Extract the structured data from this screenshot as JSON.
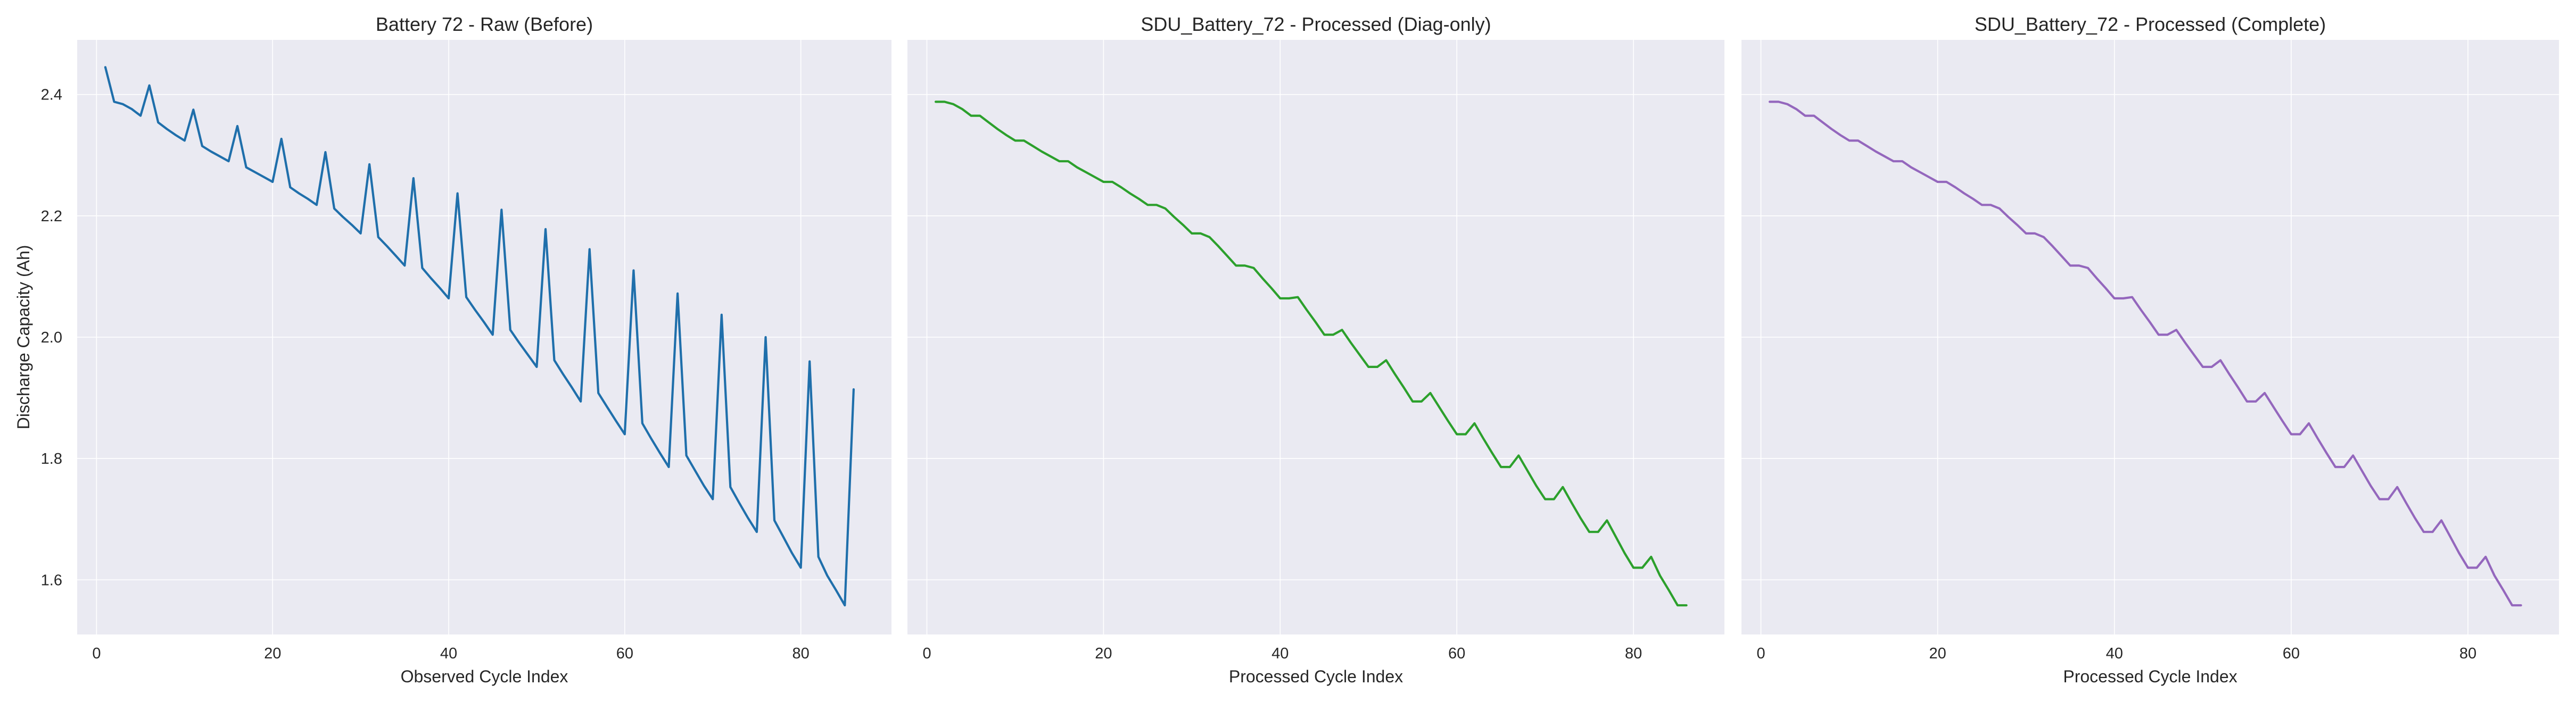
{
  "figure": {
    "ylabel": "Discharge Capacity (Ah)"
  },
  "chart_data": [
    {
      "type": "line",
      "title": "Battery 72 - Raw (Before)",
      "xlabel": "Observed Cycle Index",
      "ylabel": "Discharge Capacity (Ah)",
      "xlim": [
        -2.2,
        90.3
      ],
      "ylim": [
        1.51,
        2.49
      ],
      "xticks": [
        0,
        20,
        40,
        60,
        80
      ],
      "yticks": [
        1.6,
        1.8,
        2.0,
        2.2,
        2.4
      ],
      "tick_labels_x": [
        "0",
        "20",
        "40",
        "60",
        "80"
      ],
      "tick_labels_y": [
        "1.6",
        "1.8",
        "2.0",
        "2.2",
        "2.4"
      ],
      "grid": true,
      "color": "#1f6fab",
      "series": [
        {
          "x": [
            1,
            2,
            3,
            4,
            5,
            6,
            7,
            8,
            9,
            10,
            11,
            12,
            13,
            14,
            15,
            16,
            17,
            18,
            19,
            20,
            21,
            22,
            23,
            24,
            25,
            26,
            27,
            28,
            29,
            30,
            31,
            32,
            33,
            34,
            35,
            36,
            37,
            38,
            39,
            40,
            41,
            42,
            43,
            44,
            45,
            46,
            47,
            48,
            49,
            50,
            51,
            52,
            53,
            54,
            55,
            56,
            57,
            58,
            59,
            60,
            61,
            62,
            63,
            64,
            65,
            66,
            67,
            68,
            69,
            70,
            71,
            72,
            73,
            74,
            75,
            76,
            77,
            78,
            79,
            80,
            81,
            82,
            83,
            84,
            85,
            86
          ],
          "y": [
            2.445,
            2.388,
            2.384,
            2.376,
            2.365,
            2.415,
            2.354,
            2.343,
            2.333,
            2.324,
            2.375,
            2.315,
            2.306,
            2.298,
            2.29,
            2.348,
            2.28,
            2.272,
            2.264,
            2.256,
            2.327,
            2.247,
            2.237,
            2.228,
            2.218,
            2.305,
            2.212,
            2.198,
            2.185,
            2.171,
            2.285,
            2.165,
            2.15,
            2.134,
            2.118,
            2.262,
            2.114,
            2.097,
            2.081,
            2.064,
            2.237,
            2.066,
            2.045,
            2.025,
            2.004,
            2.21,
            2.012,
            1.991,
            1.971,
            1.951,
            2.178,
            1.962,
            1.939,
            1.917,
            1.894,
            2.145,
            1.908,
            1.885,
            1.862,
            1.84,
            2.11,
            1.858,
            1.833,
            1.809,
            1.786,
            2.072,
            1.805,
            1.78,
            1.755,
            1.733,
            2.037,
            1.753,
            1.727,
            1.702,
            1.679,
            2.0,
            1.698,
            1.671,
            1.644,
            1.62,
            1.96,
            1.638,
            1.607,
            1.583,
            1.558,
            1.914
          ]
        }
      ]
    },
    {
      "type": "line",
      "title": "SDU_Battery_72 - Processed (Diag-only)",
      "xlabel": "Processed Cycle Index",
      "ylabel": "",
      "xlim": [
        -2.2,
        90.3
      ],
      "ylim": [
        1.51,
        2.49
      ],
      "xticks": [
        0,
        20,
        40,
        60,
        80
      ],
      "yticks": [
        1.6,
        1.8,
        2.0,
        2.2,
        2.4
      ],
      "tick_labels_x": [
        "0",
        "20",
        "40",
        "60",
        "80"
      ],
      "grid": true,
      "color": "#2ca02c",
      "series": [
        {
          "x": [
            1,
            2,
            3,
            4,
            5,
            6,
            7,
            8,
            9,
            10,
            11,
            12,
            13,
            14,
            15,
            16,
            17,
            18,
            19,
            20,
            21,
            22,
            23,
            24,
            25,
            26,
            27,
            28,
            29,
            30,
            31,
            32,
            33,
            34,
            35,
            36,
            37,
            38,
            39,
            40,
            41,
            42,
            43,
            44,
            45,
            46,
            47,
            48,
            49,
            50,
            51,
            52,
            53,
            54,
            55,
            56,
            57,
            58,
            59,
            60,
            61,
            62,
            63,
            64,
            65,
            66,
            67,
            68,
            69,
            70,
            71,
            72,
            73,
            74,
            75,
            76,
            77,
            78,
            79,
            80,
            81,
            82,
            83,
            84,
            85,
            86
          ],
          "y": [
            2.388,
            2.388,
            2.384,
            2.376,
            2.365,
            2.365,
            2.354,
            2.343,
            2.333,
            2.324,
            2.324,
            2.315,
            2.306,
            2.298,
            2.29,
            2.29,
            2.28,
            2.272,
            2.264,
            2.256,
            2.256,
            2.247,
            2.237,
            2.228,
            2.218,
            2.218,
            2.212,
            2.198,
            2.185,
            2.171,
            2.171,
            2.165,
            2.15,
            2.134,
            2.118,
            2.118,
            2.114,
            2.097,
            2.081,
            2.064,
            2.064,
            2.066,
            2.045,
            2.025,
            2.004,
            2.004,
            2.012,
            1.991,
            1.971,
            1.951,
            1.951,
            1.962,
            1.939,
            1.917,
            1.894,
            1.894,
            1.908,
            1.885,
            1.862,
            1.84,
            1.84,
            1.858,
            1.833,
            1.809,
            1.786,
            1.786,
            1.805,
            1.78,
            1.755,
            1.733,
            1.733,
            1.753,
            1.727,
            1.702,
            1.679,
            1.679,
            1.698,
            1.671,
            1.644,
            1.62,
            1.62,
            1.638,
            1.607,
            1.583,
            1.558,
            1.558
          ]
        }
      ]
    },
    {
      "type": "line",
      "title": "SDU_Battery_72 - Processed (Complete)",
      "xlabel": "Processed Cycle Index",
      "ylabel": "",
      "xlim": [
        -2.2,
        90.3
      ],
      "ylim": [
        1.51,
        2.49
      ],
      "xticks": [
        0,
        20,
        40,
        60,
        80
      ],
      "yticks": [
        1.6,
        1.8,
        2.0,
        2.2,
        2.4
      ],
      "tick_labels_x": [
        "0",
        "20",
        "40",
        "60",
        "80"
      ],
      "grid": true,
      "color": "#9467bd",
      "series": [
        {
          "x": [
            1,
            2,
            3,
            4,
            5,
            6,
            7,
            8,
            9,
            10,
            11,
            12,
            13,
            14,
            15,
            16,
            17,
            18,
            19,
            20,
            21,
            22,
            23,
            24,
            25,
            26,
            27,
            28,
            29,
            30,
            31,
            32,
            33,
            34,
            35,
            36,
            37,
            38,
            39,
            40,
            41,
            42,
            43,
            44,
            45,
            46,
            47,
            48,
            49,
            50,
            51,
            52,
            53,
            54,
            55,
            56,
            57,
            58,
            59,
            60,
            61,
            62,
            63,
            64,
            65,
            66,
            67,
            68,
            69,
            70,
            71,
            72,
            73,
            74,
            75,
            76,
            77,
            78,
            79,
            80,
            81,
            82,
            83,
            84,
            85,
            86
          ],
          "y": [
            2.388,
            2.388,
            2.384,
            2.376,
            2.365,
            2.365,
            2.354,
            2.343,
            2.333,
            2.324,
            2.324,
            2.315,
            2.306,
            2.298,
            2.29,
            2.29,
            2.28,
            2.272,
            2.264,
            2.256,
            2.256,
            2.247,
            2.237,
            2.228,
            2.218,
            2.218,
            2.212,
            2.198,
            2.185,
            2.171,
            2.171,
            2.165,
            2.15,
            2.134,
            2.118,
            2.118,
            2.114,
            2.097,
            2.081,
            2.064,
            2.064,
            2.066,
            2.045,
            2.025,
            2.004,
            2.004,
            2.012,
            1.991,
            1.971,
            1.951,
            1.951,
            1.962,
            1.939,
            1.917,
            1.894,
            1.894,
            1.908,
            1.885,
            1.862,
            1.84,
            1.84,
            1.858,
            1.833,
            1.809,
            1.786,
            1.786,
            1.805,
            1.78,
            1.755,
            1.733,
            1.733,
            1.753,
            1.727,
            1.702,
            1.679,
            1.679,
            1.698,
            1.671,
            1.644,
            1.62,
            1.62,
            1.638,
            1.607,
            1.583,
            1.558,
            1.558
          ]
        }
      ]
    }
  ]
}
